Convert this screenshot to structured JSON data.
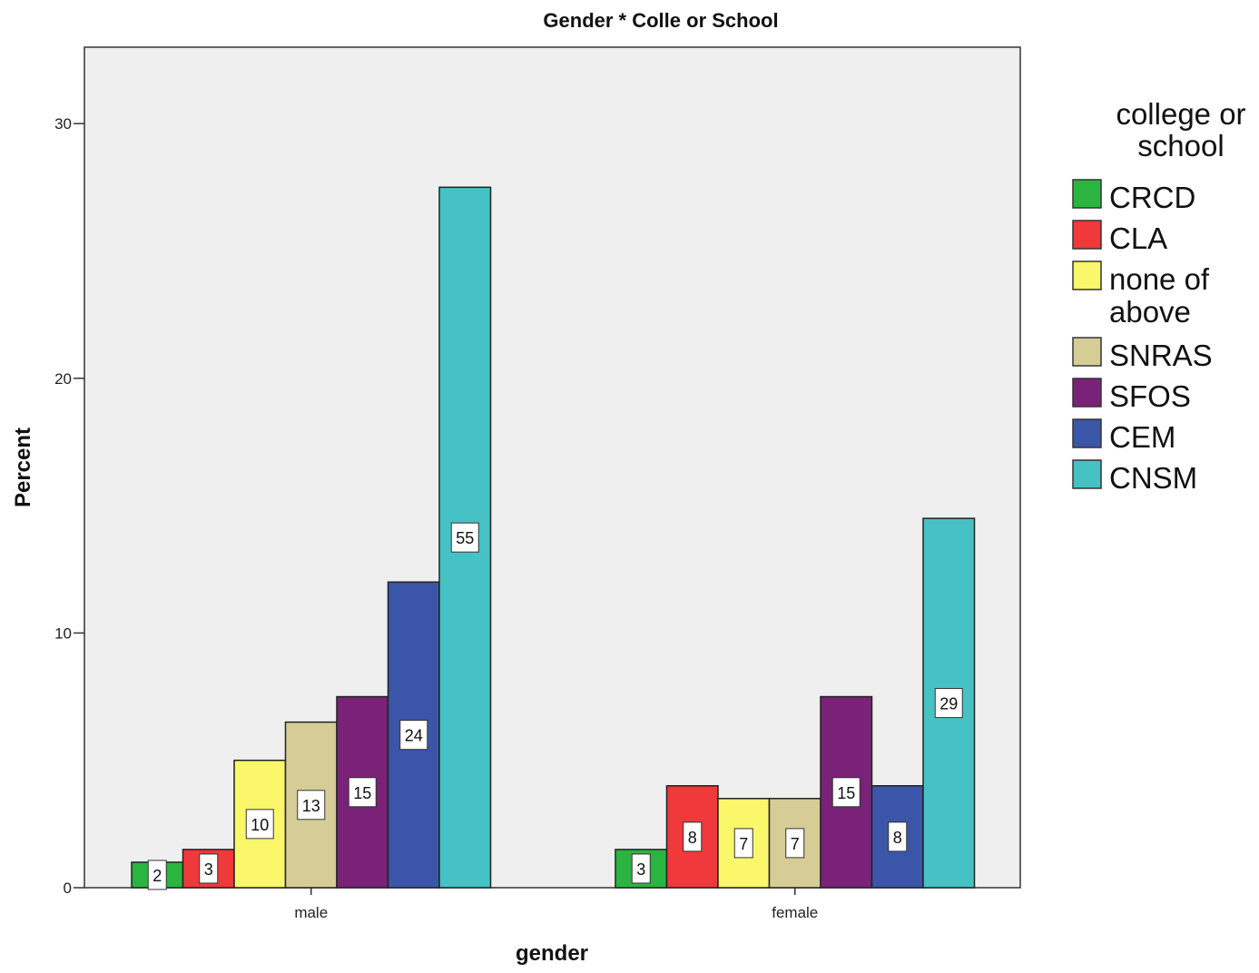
{
  "chart_data": {
    "type": "bar",
    "title": "Gender * Colle or School",
    "xlabel": "gender",
    "ylabel": "Percent",
    "ylim": [
      0,
      33
    ],
    "yticks": [
      0,
      10,
      20,
      30
    ],
    "grid": false,
    "legend_title": "college or school",
    "legend_position": "right",
    "categories": [
      "male",
      "female"
    ],
    "series": [
      {
        "name": "CRCD",
        "color": "#2ab541",
        "values": [
          1.0,
          1.5
        ],
        "labels": [
          "2",
          "3"
        ]
      },
      {
        "name": "CLA",
        "color": "#f0393a",
        "values": [
          1.5,
          4.0
        ],
        "labels": [
          "3",
          "8"
        ]
      },
      {
        "name": "none of above",
        "color": "#fbf76a",
        "values": [
          5.0,
          3.5
        ],
        "labels": [
          "10",
          "7"
        ]
      },
      {
        "name": "SNRAS",
        "color": "#d6cd96",
        "values": [
          6.5,
          3.5
        ],
        "labels": [
          "13",
          "7"
        ]
      },
      {
        "name": "SFOS",
        "color": "#7a2278",
        "values": [
          7.5,
          7.5
        ],
        "labels": [
          "15",
          "15"
        ]
      },
      {
        "name": "CEM",
        "color": "#3b56a8",
        "values": [
          12.0,
          4.0
        ],
        "labels": [
          "24",
          "8"
        ]
      },
      {
        "name": "CNSM",
        "color": "#46c2c5",
        "values": [
          27.5,
          14.5
        ],
        "labels": [
          "55",
          "29"
        ]
      }
    ]
  }
}
